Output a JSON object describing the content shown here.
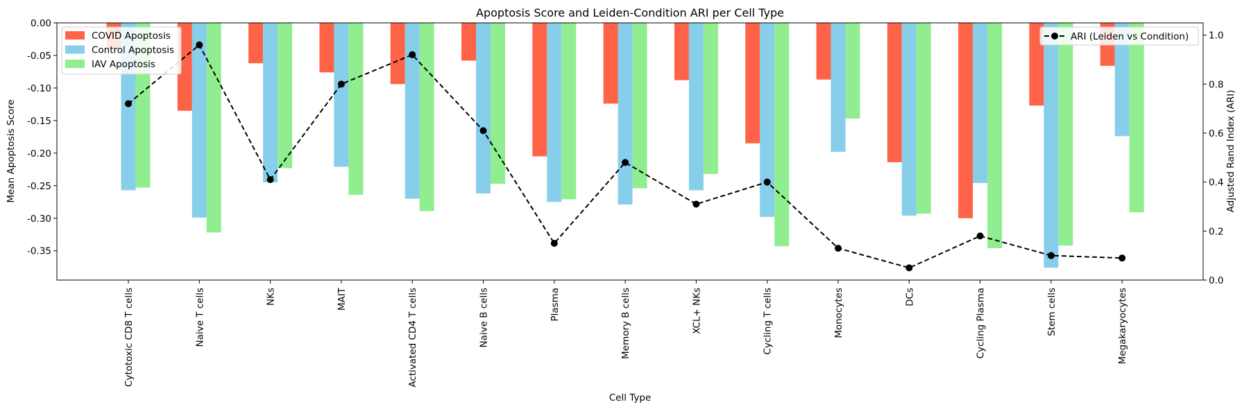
{
  "chart_data": {
    "type": "bar",
    "title": "Apoptosis Score and Leiden-Condition ARI per Cell Type",
    "xlabel": "Cell Type",
    "ylabel": "Mean Apoptosis Score",
    "y2label": "Adjusted Rand Index (ARI)",
    "ylim": [
      -0.395,
      0.0
    ],
    "y2lim": [
      0.0,
      1.05
    ],
    "yticks": [
      "0.00",
      "-0.05",
      "-0.10",
      "-0.15",
      "-0.20",
      "-0.25",
      "-0.30",
      "-0.35"
    ],
    "y2ticks": [
      "0.0",
      "0.2",
      "0.4",
      "0.6",
      "0.8",
      "1.0"
    ],
    "grid": false,
    "categories": [
      "Cytotoxic CD8 T cells",
      "Naive T cells",
      "NKs",
      "MAIT",
      "Activated CD4 T cells",
      "Naive B cells",
      "Plasma",
      "Memory B cells",
      "XCL+ NKs",
      "Cycling T cells",
      "Monocytes",
      "DCs",
      "Cycling Plasma",
      "Stem cells",
      "Megakaryocytes"
    ],
    "series": [
      {
        "name": "COVID Apoptosis",
        "color": "#ff6347",
        "values": [
          -0.04,
          -0.135,
          -0.062,
          -0.076,
          -0.094,
          -0.058,
          -0.205,
          -0.124,
          -0.088,
          -0.185,
          -0.087,
          -0.214,
          -0.3,
          -0.127,
          -0.066
        ]
      },
      {
        "name": "Control Apoptosis",
        "color": "#87ceeb",
        "values": [
          -0.257,
          -0.299,
          -0.245,
          -0.221,
          -0.27,
          -0.262,
          -0.275,
          -0.279,
          -0.257,
          -0.298,
          -0.198,
          -0.296,
          -0.246,
          -0.376,
          -0.174
        ]
      },
      {
        "name": "IAV Apoptosis",
        "color": "#90ee90",
        "values": [
          -0.253,
          -0.322,
          -0.223,
          -0.264,
          -0.289,
          -0.247,
          -0.271,
          -0.254,
          -0.232,
          -0.343,
          -0.147,
          -0.293,
          -0.346,
          -0.342,
          -0.291
        ]
      }
    ],
    "line_series": {
      "name": "ARI (Leiden vs Condition)",
      "color": "#000000",
      "style": "dashed",
      "marker": "circle",
      "values": [
        0.72,
        0.96,
        0.41,
        0.8,
        0.92,
        0.61,
        0.15,
        0.48,
        0.31,
        0.4,
        0.13,
        0.05,
        0.18,
        0.1,
        0.09
      ]
    },
    "legend_left_placement": "top-left",
    "legend_right_placement": "top-right"
  }
}
